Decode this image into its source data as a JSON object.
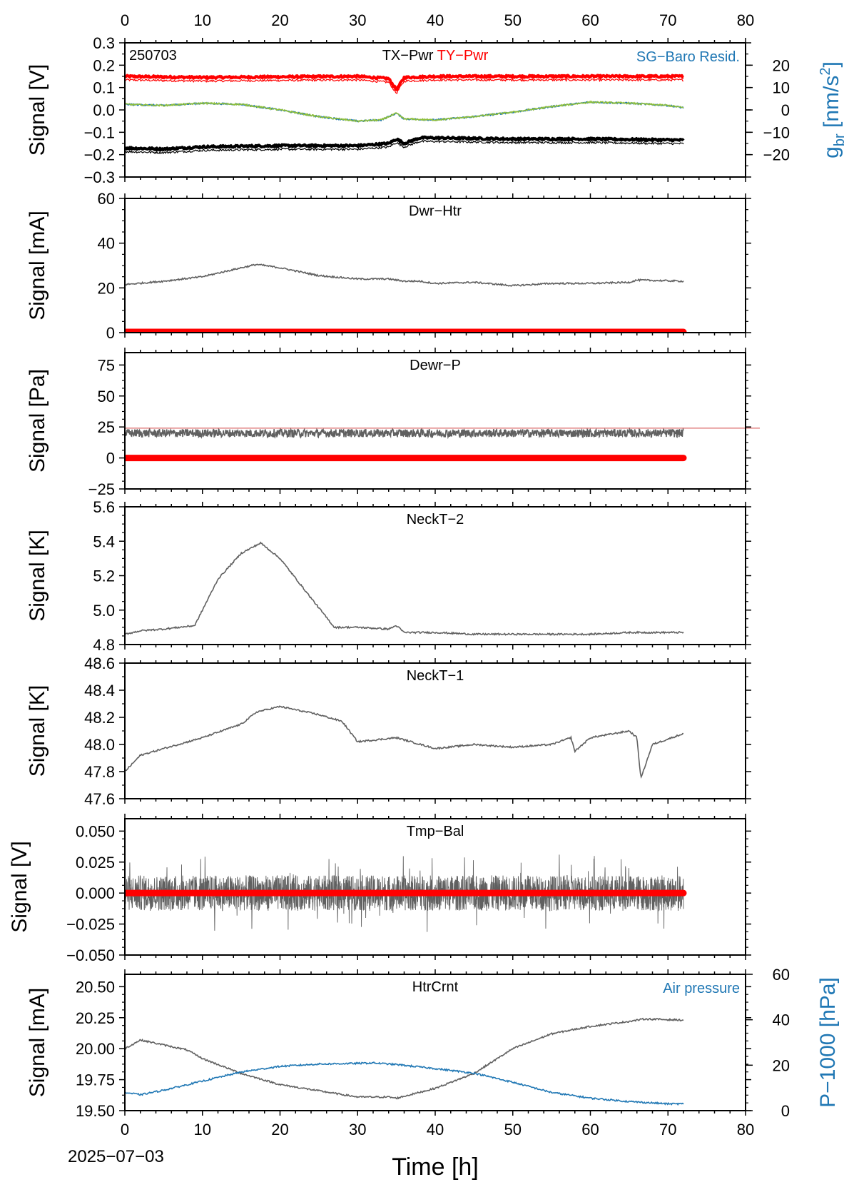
{
  "figure": {
    "date": "2025−07−03",
    "xlabel": "Time [h]",
    "xlim": [
      0,
      80
    ],
    "xticks": [
      0,
      10,
      20,
      30,
      40,
      50,
      60,
      70,
      80
    ],
    "top_axis_ticks": true
  },
  "chart_data": [
    {
      "type": "line",
      "panel": "TX-Pwr / TY-Pwr / SG-Baro Resid.",
      "tag": "250703",
      "title_parts": [
        {
          "text": "TX−Pwr",
          "color": "#000000"
        },
        {
          "text": "TY−Pwr",
          "color": "#ff0000"
        }
      ],
      "right_label_text": "SG−Baro Resid.",
      "ylabel": "Signal [V]",
      "ylim": [
        -0.3,
        0.3
      ],
      "yticks": [
        -0.3,
        -0.2,
        -0.1,
        0.0,
        0.1,
        0.2,
        0.3
      ],
      "ytick_labels": [
        "−0.3",
        "−0.2",
        "−0.1",
        "0.0",
        "0.1",
        "0.2",
        "0.3"
      ],
      "y2label": "g_br [nm/s²]",
      "y2lim": [
        -30,
        30
      ],
      "y2ticks": [
        -20,
        -10,
        0,
        10,
        20
      ],
      "y2tick_labels": [
        "−20",
        "−10",
        "0",
        "10",
        "20"
      ],
      "series": [
        {
          "name": "TY−Pwr",
          "color": "#ff0000",
          "style": "dots",
          "x": [
            0,
            10,
            20,
            30,
            34,
            35,
            36,
            40,
            50,
            60,
            72
          ],
          "y": [
            0.15,
            0.145,
            0.148,
            0.15,
            0.14,
            0.09,
            0.145,
            0.15,
            0.15,
            0.15,
            0.15
          ]
        },
        {
          "name": "TX−Pwr",
          "color": "#000000",
          "style": "dots",
          "x": [
            0,
            5,
            10,
            20,
            30,
            34,
            35,
            36,
            38,
            40,
            50,
            60,
            72
          ],
          "y": [
            -0.17,
            -0.175,
            -0.165,
            -0.16,
            -0.16,
            -0.15,
            -0.13,
            -0.15,
            -0.125,
            -0.125,
            -0.13,
            -0.13,
            -0.135
          ]
        },
        {
          "name": "SG−Baro Resid.",
          "color": "#1f77b4",
          "style": "line",
          "axis": "right",
          "x": [
            0,
            5,
            10,
            15,
            20,
            25,
            30,
            33,
            35,
            36,
            40,
            45,
            50,
            55,
            60,
            65,
            70,
            72
          ],
          "y": [
            2.5,
            2.0,
            3.0,
            2.5,
            0.0,
            -3.0,
            -5.0,
            -4.5,
            -1.5,
            -4.0,
            -4.5,
            -3.0,
            -1.0,
            1.5,
            3.5,
            3.0,
            2.0,
            1.0
          ]
        },
        {
          "name": "SG fit",
          "color": "#8fbf3a",
          "style": "line",
          "axis": "right",
          "x": [
            0,
            5,
            10,
            15,
            20,
            25,
            30,
            33,
            35,
            36,
            40,
            45,
            50,
            55,
            60,
            65,
            70,
            72
          ],
          "y": [
            2.5,
            2.0,
            3.0,
            2.5,
            0.0,
            -3.0,
            -5.0,
            -4.5,
            -1.5,
            -4.0,
            -4.5,
            -3.0,
            -1.0,
            1.5,
            3.5,
            3.0,
            2.0,
            1.0
          ]
        }
      ]
    },
    {
      "type": "line",
      "panel": "Dwr-Htr",
      "title": "Dwr−Htr",
      "ylabel": "Signal [mA]",
      "ylim": [
        0,
        60
      ],
      "yticks": [
        0,
        20,
        40,
        60
      ],
      "ytick_labels": [
        "0",
        "20",
        "40",
        "60"
      ],
      "series": [
        {
          "name": "Dwr−Htr",
          "color": "#606060",
          "x": [
            0,
            5,
            10,
            15,
            17,
            20,
            25,
            30,
            34,
            36,
            38,
            40,
            45,
            50,
            55,
            60,
            65,
            66,
            72
          ],
          "y": [
            21.5,
            23,
            25,
            29,
            30.5,
            29,
            25.5,
            24,
            24,
            23,
            23,
            22,
            22.5,
            21,
            22,
            22,
            22.5,
            23.5,
            23
          ]
        },
        {
          "name": "baseline",
          "color": "#ff0000",
          "style": "thick",
          "x": [
            0,
            72
          ],
          "y": [
            0.3,
            0.3
          ]
        }
      ]
    },
    {
      "type": "line",
      "panel": "Dewr-P",
      "title": "Dewr−P",
      "ylabel": "Signal [Pa]",
      "ylim": [
        -25,
        85
      ],
      "yticks": [
        -25,
        0,
        25,
        50,
        75
      ],
      "ytick_labels": [
        "−25",
        "0",
        "25",
        "50",
        "75"
      ],
      "hline": {
        "y": 24,
        "color": "#d04040"
      },
      "series": [
        {
          "name": "Dewr−P",
          "color": "#606060",
          "style": "noisy",
          "x": [
            0,
            72
          ],
          "y": [
            20,
            20
          ]
        },
        {
          "name": "baseline",
          "color": "#ff0000",
          "style": "thick",
          "x": [
            0,
            72
          ],
          "y": [
            0,
            0
          ]
        }
      ]
    },
    {
      "type": "line",
      "panel": "NeckT-2",
      "title": "NeckT−2",
      "ylabel": "Signal [K]",
      "ylim": [
        4.8,
        5.6
      ],
      "yticks": [
        4.8,
        5.0,
        5.2,
        5.4,
        5.6
      ],
      "ytick_labels": [
        "4.8",
        "5.0",
        "5.2",
        "5.4",
        "5.6"
      ],
      "series": [
        {
          "name": "NeckT−2",
          "color": "#606060",
          "x": [
            0,
            2,
            5,
            9,
            10,
            12,
            15,
            17.5,
            20,
            24,
            27,
            30,
            34,
            35,
            36,
            40,
            45,
            50,
            55,
            60,
            65,
            70,
            72
          ],
          "y": [
            4.86,
            4.88,
            4.89,
            4.91,
            5.0,
            5.18,
            5.33,
            5.39,
            5.3,
            5.07,
            4.9,
            4.9,
            4.89,
            4.91,
            4.87,
            4.87,
            4.86,
            4.86,
            4.86,
            4.86,
            4.87,
            4.87,
            4.87
          ]
        }
      ]
    },
    {
      "type": "line",
      "panel": "NeckT-1",
      "title": "NeckT−1",
      "ylabel": "Signal [K]",
      "ylim": [
        47.6,
        48.6
      ],
      "yticks": [
        47.6,
        47.8,
        48.0,
        48.2,
        48.4,
        48.6
      ],
      "ytick_labels": [
        "47.6",
        "47.8",
        "48.0",
        "48.2",
        "48.4",
        "48.6"
      ],
      "series": [
        {
          "name": "NeckT−1",
          "color": "#606060",
          "x": [
            0,
            2,
            5,
            10,
            15,
            17,
            20,
            25,
            28,
            30,
            35,
            40,
            45,
            50,
            55,
            57.5,
            58,
            60,
            65,
            66,
            66.5,
            68,
            72
          ],
          "y": [
            47.8,
            47.92,
            47.97,
            48.05,
            48.15,
            48.24,
            48.28,
            48.22,
            48.17,
            48.02,
            48.05,
            47.97,
            48.0,
            47.98,
            48.0,
            48.05,
            47.95,
            48.05,
            48.1,
            48.05,
            47.75,
            48.0,
            48.08
          ]
        }
      ]
    },
    {
      "type": "line",
      "panel": "Tmp-Bal",
      "title": "Tmp−Bal",
      "ylabel": "Signal [V]",
      "ylim": [
        -0.05,
        0.06
      ],
      "yticks": [
        -0.05,
        -0.025,
        0.0,
        0.025,
        0.05
      ],
      "ytick_labels": [
        "−0.050",
        "−0.025",
        "0.000",
        "0.025",
        "0.050"
      ],
      "series": [
        {
          "name": "Tmp−Bal",
          "color": "#606060",
          "style": "noisy_band",
          "x": [
            0,
            72
          ],
          "y": [
            0.0,
            0.0
          ]
        },
        {
          "name": "baseline",
          "color": "#ff0000",
          "style": "thick",
          "x": [
            0,
            72
          ],
          "y": [
            0,
            0
          ]
        }
      ]
    },
    {
      "type": "line",
      "panel": "HtrCrnt / Air pressure",
      "title": "HtrCrnt",
      "right_label_text": "Air pressure",
      "ylabel": "Signal [mA]",
      "ylim": [
        19.5,
        20.6
      ],
      "yticks": [
        19.5,
        19.75,
        20.0,
        20.25,
        20.5
      ],
      "ytick_labels": [
        "19.50",
        "19.75",
        "20.00",
        "20.25",
        "20.50"
      ],
      "y2label": "P−1000 [hPa]",
      "y2lim": [
        0,
        60
      ],
      "y2ticks": [
        0,
        20,
        40,
        60
      ],
      "y2tick_labels": [
        "0",
        "20",
        "40",
        "60"
      ],
      "series": [
        {
          "name": "HtrCrnt",
          "color": "#606060",
          "x": [
            0,
            2,
            5,
            8,
            10,
            15,
            20,
            25,
            30,
            34,
            35,
            40,
            45,
            50,
            55,
            60,
            65,
            67,
            72
          ],
          "y": [
            20.0,
            20.07,
            20.03,
            19.99,
            19.92,
            19.8,
            19.71,
            19.66,
            19.61,
            19.61,
            19.6,
            19.68,
            19.8,
            20.0,
            20.12,
            20.18,
            20.22,
            20.24,
            20.23
          ]
        },
        {
          "name": "Air pressure",
          "color": "#1f77b4",
          "axis": "right",
          "x": [
            0,
            2,
            5,
            10,
            15,
            20,
            25,
            30,
            32,
            35,
            40,
            45,
            50,
            55,
            60,
            65,
            70,
            72
          ],
          "y": [
            8,
            7,
            9,
            13,
            17,
            19.5,
            20.5,
            20.8,
            21,
            20.3,
            18.5,
            16.5,
            12.5,
            8,
            5.5,
            4,
            3,
            3
          ]
        }
      ]
    }
  ]
}
